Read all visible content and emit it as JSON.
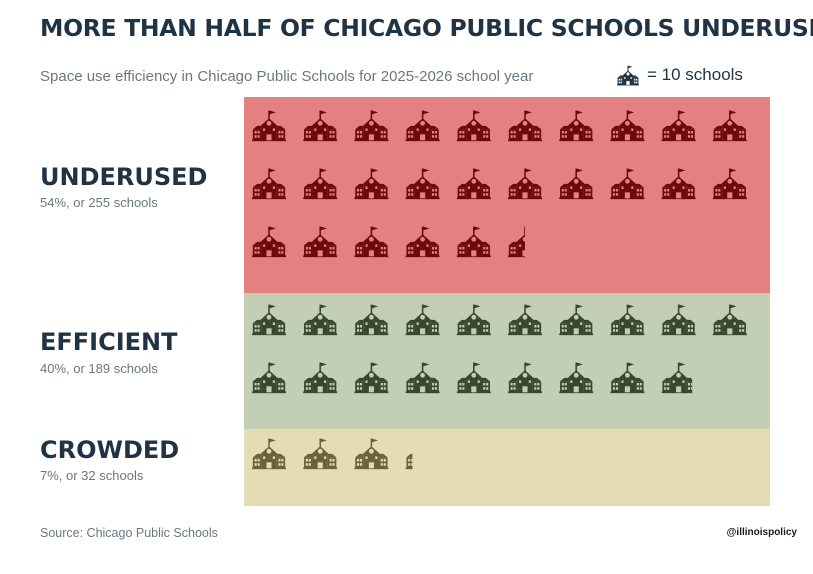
{
  "title": "MORE THAN HALF OF CHICAGO PUBLIC SCHOOLS UNDERUSED",
  "subtitle": "Space use efficiency in Chicago Public Schools for 2025-2026 school year",
  "legend": {
    "icon": "school-icon",
    "text": "= 10 schools"
  },
  "source": "Source: Chicago Public Schools",
  "handle": "@illinoispolicy",
  "colors": {
    "title": "#1f3344",
    "underused_bg": "#e58080",
    "underused_icon": "#6b0a0a",
    "efficient_bg": "#c3cfb4",
    "efficient_icon": "#37482f",
    "crowded_bg": "#e5dcb4",
    "crowded_icon": "#6b613f",
    "legend_icon": "#1f3344"
  },
  "chart_data": {
    "type": "pictogram",
    "unit": "10 schools per icon",
    "icons_per_row": 10,
    "categories": [
      {
        "key": "underused",
        "name": "UNDERUSED",
        "label": "54%, or 255 schools",
        "percent": 54,
        "schools": 255
      },
      {
        "key": "efficient",
        "name": "EFFICIENT",
        "label": "40%, or 189 schools",
        "percent": 40,
        "schools": 189
      },
      {
        "key": "crowded",
        "name": "CROWDED",
        "label": "7%, or 32 schools",
        "percent": 7,
        "schools": 32
      }
    ]
  }
}
